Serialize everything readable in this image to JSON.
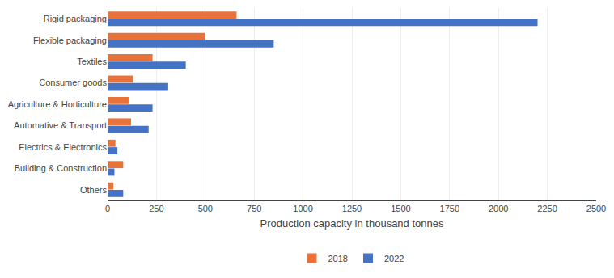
{
  "chart_data": {
    "type": "bar",
    "orientation": "horizontal",
    "categories": [
      "Rigid packaging",
      "Flexible packaging",
      "Textiles",
      "Consumer goods",
      "Agriculture & Horticulture",
      "Automative & Transport",
      "Electrics & Electronics",
      "Building & Construction",
      "Others"
    ],
    "series": [
      {
        "name": "2018",
        "color": "#E8733A",
        "values": [
          660,
          500,
          230,
          130,
          110,
          120,
          40,
          80,
          30
        ]
      },
      {
        "name": "2022",
        "color": "#4472C4",
        "values": [
          2200,
          850,
          400,
          310,
          230,
          210,
          50,
          35,
          80
        ]
      }
    ],
    "xlabel": "Production capacity in thousand tonnes",
    "xlim": [
      0,
      2500
    ],
    "xticks": [
      0,
      250,
      500,
      750,
      1000,
      1250,
      1500,
      1750,
      2000,
      2250,
      2500
    ],
    "grid": true,
    "legend": "bottom"
  }
}
